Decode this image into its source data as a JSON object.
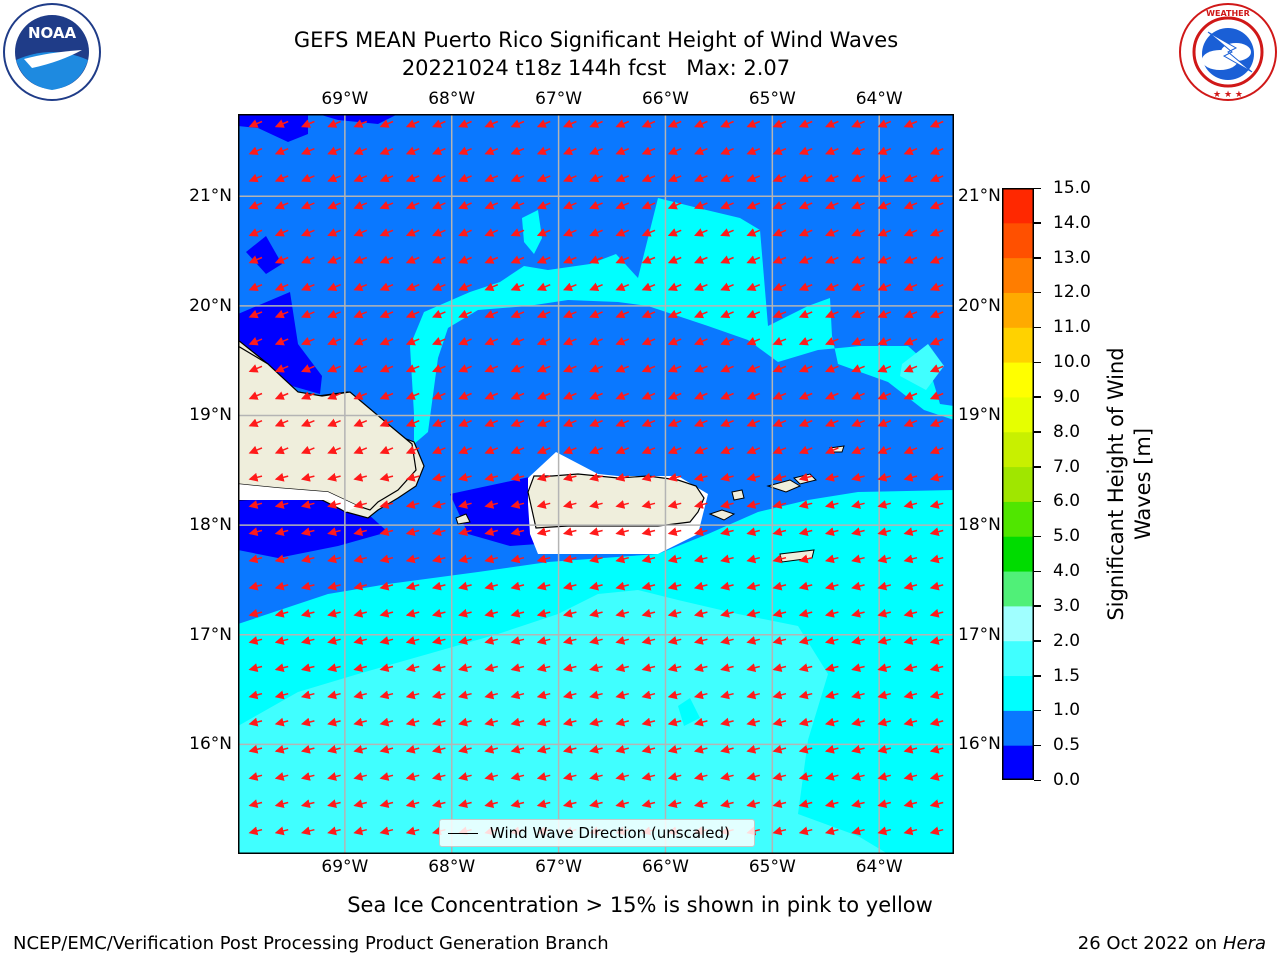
{
  "title": {
    "line1": "GEFS MEAN Puerto Rico Significant Height of Wind Waves",
    "line2": "20221024 t18z 144h fcst   Max: 2.07"
  },
  "logos": {
    "left": {
      "text": "NOAA",
      "ring_text": "NATIONAL OCEANIC AND ATMOSPHERIC ADMINISTRATION · U.S. DEPARTMENT OF COMMERCE"
    },
    "right": {
      "ring_text": "NATIONAL WEATHER SERVICE"
    }
  },
  "map": {
    "lon_labels": [
      "69°W",
      "68°W",
      "67°W",
      "66°W",
      "65°W",
      "64°W"
    ],
    "lat_labels": [
      "21°N",
      "20°N",
      "19°N",
      "18°N",
      "17°N",
      "16°N"
    ],
    "lon_range": [
      -70.0,
      -63.3
    ],
    "lat_range": [
      15.0,
      21.75
    ],
    "grid": true,
    "land_color": "#efeedc",
    "arrow_color": "#ff1a1a",
    "arrow_direction": "toward west-southwest",
    "legend_label": "Wind Wave Direction (unscaled)",
    "legend_position": "bottom-center"
  },
  "colorbar": {
    "label": "Significant Height of Wind Waves [m]",
    "label_line1": "Significant Height of Wind",
    "label_line2": "Waves [m]",
    "ticks": [
      "0.0",
      "0.5",
      "1.0",
      "1.5",
      "2.0",
      "3.0",
      "4.0",
      "5.0",
      "6.0",
      "7.0",
      "8.0",
      "9.0",
      "10.0",
      "11.0",
      "12.0",
      "13.0",
      "14.0",
      "15.0"
    ],
    "colors": [
      "#0000ff",
      "#0a78ff",
      "#00ffff",
      "#40ffff",
      "#a0ffff",
      "#50f078",
      "#00dc00",
      "#50e600",
      "#a0e600",
      "#c8f000",
      "#e6ff00",
      "#ffff00",
      "#ffd200",
      "#ffaa00",
      "#ff7d00",
      "#ff5000",
      "#ff2800",
      "#ff0000"
    ]
  },
  "notes": {
    "sea_ice": "Sea Ice Concentration > 15% is shown in pink to yellow"
  },
  "footer": {
    "left": "NCEP/EMC/Verification Post Processing Product Generation Branch",
    "right_date": "26 Oct 2022 on",
    "right_machine": "Hera"
  }
}
